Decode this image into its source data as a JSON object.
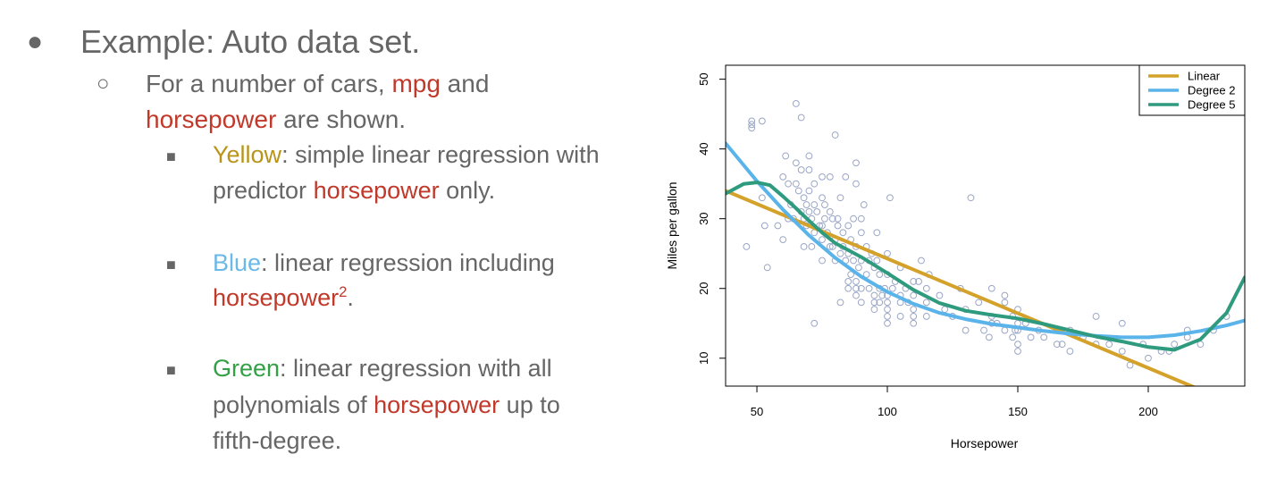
{
  "slide": {
    "bullet1": {
      "glyph": "●",
      "text": "Example: Auto data set."
    },
    "bullet2": {
      "glyph": "○",
      "pre": "For a number of cars, ",
      "mpg": "mpg",
      "mid": " and",
      "hp": "horsepower",
      "post": " are shown."
    },
    "yellow": {
      "glyph": "■",
      "name": "Yellow",
      "line1": ": simple linear regression with",
      "line2_pre": "predictor ",
      "hp": "horsepower",
      "line2_post": " only."
    },
    "blue": {
      "glyph": "■",
      "name": "Blue",
      "line1": ": linear regression including",
      "hp": "horsepower",
      "exp": "2",
      "post": "."
    },
    "green": {
      "glyph": "■",
      "name": "Green",
      "line1": ": linear regression with all",
      "line2_pre": "polynomials of ",
      "hp": "horsepower",
      "line2_post": " up to",
      "line3": "fifth-degree."
    }
  },
  "chart_data": {
    "type": "scatter",
    "xlabel": "Horsepower",
    "ylabel": "Miles per gallon",
    "xlim": [
      38,
      237
    ],
    "ylim": [
      6,
      52
    ],
    "xticks": [
      50,
      100,
      150,
      200
    ],
    "yticks": [
      10,
      20,
      30,
      40,
      50
    ],
    "legend": {
      "placement": "top-right"
    },
    "colors": {
      "points": "#9aa6c6",
      "Linear": "#d4a22a",
      "Degree 2": "#5ab4ea",
      "Degree 5": "#2e9a7e"
    },
    "points": [
      [
        46,
        26
      ],
      [
        48,
        43
      ],
      [
        48,
        44
      ],
      [
        48,
        43.5
      ],
      [
        52,
        44
      ],
      [
        52,
        33
      ],
      [
        53,
        29
      ],
      [
        54,
        23
      ],
      [
        58,
        29
      ],
      [
        60,
        27
      ],
      [
        60,
        36
      ],
      [
        61,
        39
      ],
      [
        62,
        30
      ],
      [
        62,
        35
      ],
      [
        63,
        32
      ],
      [
        64,
        30
      ],
      [
        65,
        38
      ],
      [
        65,
        46.5
      ],
      [
        65,
        35
      ],
      [
        66,
        34
      ],
      [
        67,
        37
      ],
      [
        67,
        31
      ],
      [
        67,
        44.5
      ],
      [
        68,
        30
      ],
      [
        68,
        33
      ],
      [
        68,
        26
      ],
      [
        69,
        29
      ],
      [
        69,
        32
      ],
      [
        70,
        37
      ],
      [
        70,
        39
      ],
      [
        70,
        34
      ],
      [
        70,
        31
      ],
      [
        71,
        30
      ],
      [
        71,
        26
      ],
      [
        72,
        28
      ],
      [
        72,
        32
      ],
      [
        72,
        35
      ],
      [
        72,
        15
      ],
      [
        73,
        31
      ],
      [
        74,
        29
      ],
      [
        75,
        36
      ],
      [
        75,
        33
      ],
      [
        75,
        29
      ],
      [
        75,
        27
      ],
      [
        75,
        24
      ],
      [
        76,
        30
      ],
      [
        76,
        32
      ],
      [
        77,
        28
      ],
      [
        78,
        36
      ],
      [
        78,
        31
      ],
      [
        78,
        26
      ],
      [
        79,
        30
      ],
      [
        79,
        26
      ],
      [
        80,
        27
      ],
      [
        80,
        24
      ],
      [
        80,
        42
      ],
      [
        81,
        29
      ],
      [
        81,
        30
      ],
      [
        82,
        33
      ],
      [
        82,
        25
      ],
      [
        82,
        18
      ],
      [
        83,
        28
      ],
      [
        83,
        26
      ],
      [
        84,
        24
      ],
      [
        84,
        36
      ],
      [
        85,
        29
      ],
      [
        85,
        25
      ],
      [
        85,
        21
      ],
      [
        85,
        20
      ],
      [
        86,
        22
      ],
      [
        86,
        27
      ],
      [
        87,
        30
      ],
      [
        87,
        24
      ],
      [
        88,
        26
      ],
      [
        88,
        19
      ],
      [
        88,
        21
      ],
      [
        88,
        20
      ],
      [
        88,
        35
      ],
      [
        88,
        38
      ],
      [
        89,
        23
      ],
      [
        90,
        28
      ],
      [
        90,
        24
      ],
      [
        90,
        20
      ],
      [
        90,
        18
      ],
      [
        90,
        30
      ],
      [
        91,
        32
      ],
      [
        92,
        26
      ],
      [
        92,
        22
      ],
      [
        93,
        24
      ],
      [
        93,
        20
      ],
      [
        94,
        25
      ],
      [
        95,
        23
      ],
      [
        95,
        19
      ],
      [
        95,
        18
      ],
      [
        95,
        17
      ],
      [
        96,
        28
      ],
      [
        96,
        24
      ],
      [
        97,
        20
      ],
      [
        97,
        22
      ],
      [
        97,
        18
      ],
      [
        98,
        19
      ],
      [
        99,
        20
      ],
      [
        100,
        25
      ],
      [
        100,
        22
      ],
      [
        100,
        19
      ],
      [
        100,
        18
      ],
      [
        100,
        16
      ],
      [
        100,
        17
      ],
      [
        100,
        15
      ],
      [
        101,
        33
      ],
      [
        102,
        20
      ],
      [
        103,
        21
      ],
      [
        105,
        23
      ],
      [
        105,
        19
      ],
      [
        105,
        18
      ],
      [
        105,
        16
      ],
      [
        107,
        20
      ],
      [
        108,
        18
      ],
      [
        110,
        19
      ],
      [
        110,
        21
      ],
      [
        110,
        17
      ],
      [
        110,
        16
      ],
      [
        110,
        15
      ],
      [
        112,
        21
      ],
      [
        113,
        24
      ],
      [
        115,
        20
      ],
      [
        115,
        18
      ],
      [
        115,
        16
      ],
      [
        116,
        22
      ],
      [
        120,
        19
      ],
      [
        122,
        17
      ],
      [
        125,
        16
      ],
      [
        128,
        20
      ],
      [
        130,
        17
      ],
      [
        130,
        14
      ],
      [
        132,
        33
      ],
      [
        135,
        18
      ],
      [
        137,
        14
      ],
      [
        139,
        13
      ],
      [
        140,
        15
      ],
      [
        140,
        16
      ],
      [
        140,
        20
      ],
      [
        142,
        15
      ],
      [
        145,
        18
      ],
      [
        145,
        19
      ],
      [
        145,
        14
      ],
      [
        148,
        16
      ],
      [
        148,
        13
      ],
      [
        149,
        14
      ],
      [
        150,
        17
      ],
      [
        150,
        15
      ],
      [
        150,
        14
      ],
      [
        150,
        12
      ],
      [
        150,
        11
      ],
      [
        153,
        15
      ],
      [
        155,
        13
      ],
      [
        158,
        14
      ],
      [
        160,
        13
      ],
      [
        165,
        12
      ],
      [
        165,
        14
      ],
      [
        167,
        12
      ],
      [
        170,
        14
      ],
      [
        170,
        11
      ],
      [
        175,
        13
      ],
      [
        180,
        16
      ],
      [
        180,
        12
      ],
      [
        185,
        12
      ],
      [
        190,
        15
      ],
      [
        190,
        11
      ],
      [
        193,
        9
      ],
      [
        198,
        12
      ],
      [
        200,
        10
      ],
      [
        205,
        11
      ],
      [
        208,
        11
      ],
      [
        210,
        12
      ],
      [
        215,
        13
      ],
      [
        215,
        14
      ],
      [
        220,
        12
      ],
      [
        225,
        14
      ],
      [
        230,
        16
      ]
    ],
    "series": [
      {
        "name": "Linear",
        "x": [
          38,
          237
        ],
        "y": [
          34.0,
          2.8
        ]
      },
      {
        "name": "Degree 2",
        "x": [
          38,
          50,
          60,
          70,
          80,
          90,
          100,
          110,
          120,
          130,
          140,
          150,
          160,
          170,
          180,
          190,
          200,
          210,
          220,
          230,
          237
        ],
        "y": [
          40.8,
          35.4,
          31.3,
          27.6,
          24.4,
          21.7,
          19.5,
          17.8,
          16.5,
          15.6,
          14.9,
          14.4,
          13.9,
          13.5,
          13.2,
          13.0,
          13.0,
          13.3,
          13.9,
          14.7,
          15.4
        ]
      },
      {
        "name": "Degree 5",
        "x": [
          38,
          45,
          50,
          55,
          60,
          65,
          70,
          75,
          80,
          90,
          100,
          110,
          120,
          130,
          140,
          150,
          160,
          170,
          180,
          190,
          200,
          210,
          220,
          230,
          237
        ],
        "y": [
          33.6,
          35.0,
          35.2,
          34.8,
          33.2,
          31.5,
          29.7,
          28.0,
          26.5,
          24.5,
          22.2,
          19.8,
          17.9,
          16.8,
          16.2,
          15.7,
          14.9,
          14.0,
          13.1,
          12.4,
          11.6,
          11.2,
          12.7,
          16.5,
          21.6
        ]
      }
    ]
  }
}
